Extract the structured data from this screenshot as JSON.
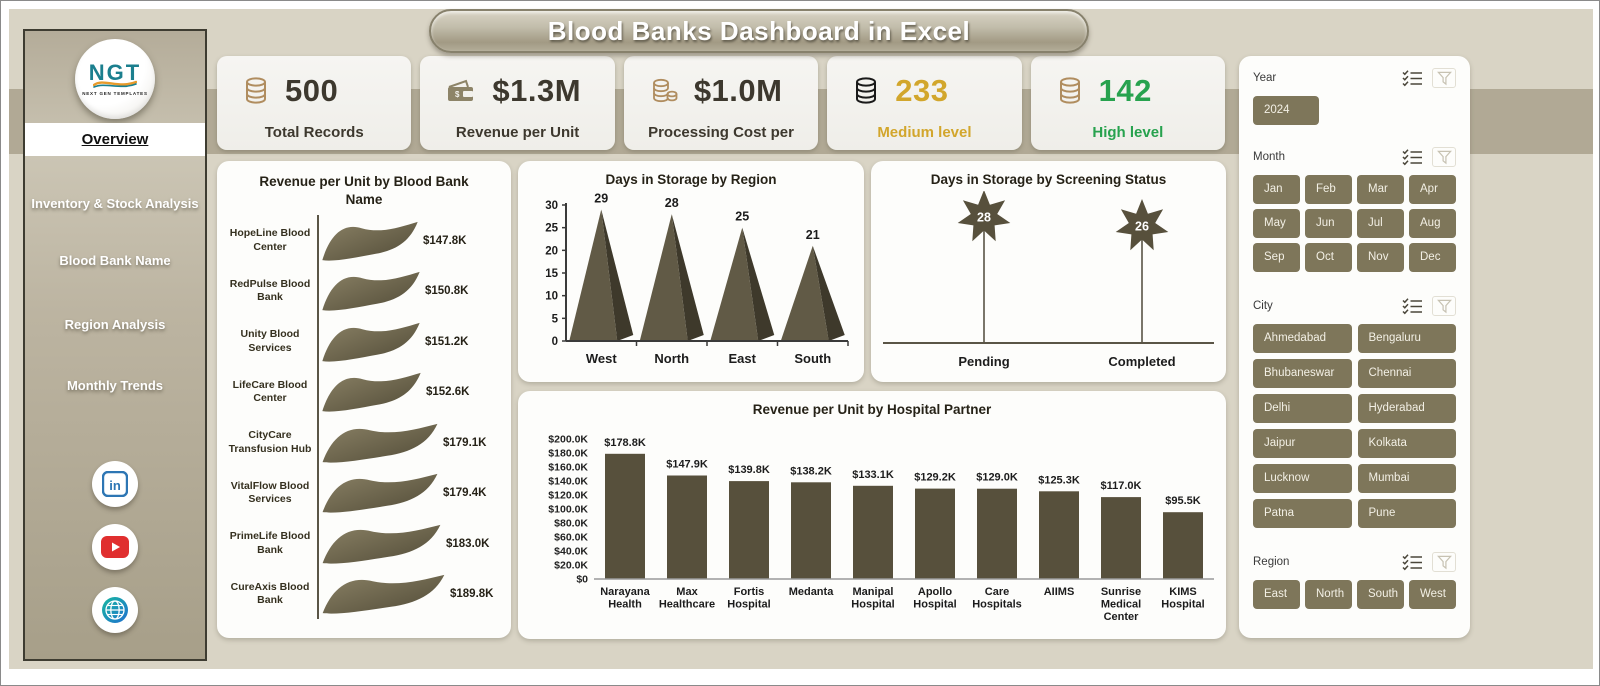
{
  "window": {
    "title": "Blood Banks Dashboard in Excel"
  },
  "sidebar": {
    "logo": {
      "text": "NGT",
      "subtext": "NEXT GEN TEMPLATES"
    },
    "items": [
      {
        "label": "Overview",
        "active": true
      },
      {
        "label": "Inventory & Stock Analysis",
        "active": false
      },
      {
        "label": "Blood Bank Name",
        "active": false
      },
      {
        "label": "Region Analysis",
        "active": false
      },
      {
        "label": "Monthly Trends",
        "active": false
      }
    ],
    "social_icons": [
      "linkedin-icon",
      "youtube-icon",
      "globe-icon"
    ]
  },
  "kpis": [
    {
      "icon": "database-icon",
      "icon_color": "#b08d5f",
      "value": "500",
      "label": "Total Records",
      "color": "#3d382e"
    },
    {
      "icon": "wallet-icon",
      "icon_color": "#8d8468",
      "value": "$1.3M",
      "label": "Revenue per Unit",
      "color": "#3d382e"
    },
    {
      "icon": "coins-icon",
      "icon_color": "#b08d5f",
      "value": "$1.0M",
      "label": "Processing Cost per",
      "color": "#3d382e"
    },
    {
      "icon": "database-icon",
      "icon_color": "#1a1a1a",
      "value": "233",
      "label": "Medium level",
      "color": "#d2a62c"
    },
    {
      "icon": "database-icon",
      "icon_color": "#b08d5f",
      "value": "142",
      "label": "High level",
      "color": "#27a24e"
    }
  ],
  "chart_data": [
    {
      "type": "bar",
      "variant": "wave-horizontal",
      "title": "Revenue per Unit by Blood Bank Name",
      "categories": [
        "HopeLine Blood Center",
        "RedPulse Blood Bank",
        "Unity Blood Services",
        "LifeCare Blood Center",
        "CityCare Transfusion Hub",
        "VitalFlow Blood Services",
        "PrimeLife Blood Bank",
        "CureAxis Blood Bank"
      ],
      "values": [
        147.8,
        150.8,
        151.2,
        152.6,
        179.1,
        179.4,
        183.0,
        189.8
      ],
      "labels": [
        "$147.8K",
        "$150.8K",
        "$151.2K",
        "$152.6K",
        "$179.1K",
        "$179.4K",
        "$183.0K",
        "$189.8K"
      ],
      "xlim": [
        0,
        200
      ],
      "unit": "USD thousands"
    },
    {
      "type": "bar",
      "variant": "pyramid-3d",
      "title": "Days in Storage by Region",
      "categories": [
        "West",
        "North",
        "East",
        "South"
      ],
      "values": [
        29,
        28,
        25,
        21
      ],
      "ylim": [
        0,
        30
      ],
      "yticks": [
        0,
        5,
        10,
        15,
        20,
        25,
        30
      ]
    },
    {
      "type": "lollipop",
      "variant": "star-marker",
      "title": "Days in Storage by Screening Status",
      "categories": [
        "Pending",
        "Completed"
      ],
      "values": [
        28,
        26
      ],
      "ylim": [
        0,
        32
      ]
    },
    {
      "type": "bar",
      "title": "Revenue per Unit by Hospital Partner",
      "categories": [
        "Narayana Health",
        "Max Healthcare",
        "Fortis Hospital",
        "Medanta",
        "Manipal Hospital",
        "Apollo Hospital",
        "Care Hospitals",
        "AIIMS",
        "Sunrise Medical Center",
        "KIMS Hospital"
      ],
      "values": [
        178.8,
        147.9,
        139.8,
        138.2,
        133.1,
        129.2,
        129.0,
        125.3,
        117.0,
        95.5
      ],
      "labels": [
        "$178.8K",
        "$147.9K",
        "$139.8K",
        "$138.2K",
        "$133.1K",
        "$129.2K",
        "$129.0K",
        "$125.3K",
        "$117.0K",
        "$95.5K"
      ],
      "ylim": [
        0,
        200
      ],
      "ytick_labels": [
        "$0",
        "$20.0K",
        "$40.0K",
        "$60.0K",
        "$80.0K",
        "$100.0K",
        "$120.0K",
        "$140.0K",
        "$160.0K",
        "$180.0K",
        "$200.0K"
      ]
    }
  ],
  "slicers": {
    "year": {
      "label": "Year",
      "options": [
        "2024"
      ]
    },
    "month": {
      "label": "Month",
      "options": [
        "Jan",
        "Feb",
        "Mar",
        "Apr",
        "May",
        "Jun",
        "Jul",
        "Aug",
        "Sep",
        "Oct",
        "Nov",
        "Dec"
      ]
    },
    "city": {
      "label": "City",
      "options": [
        "Ahmedabad",
        "Bengaluru",
        "Bhubaneswar",
        "Chennai",
        "Delhi",
        "Hyderabad",
        "Jaipur",
        "Kolkata",
        "Lucknow",
        "Mumbai",
        "Patna",
        "Pune"
      ]
    },
    "region": {
      "label": "Region",
      "options": [
        "East",
        "North",
        "South",
        "West"
      ]
    }
  },
  "colors": {
    "shape": "#57503c",
    "shape_light": "#847b5f",
    "pyramid_front": "#615a46",
    "pyramid_side": "#3e392b",
    "gold": "#d2a62c",
    "green": "#27a24e",
    "slicer_button": "#7e765a",
    "band": "#b1a995",
    "canvas_bg": "#d9d4c5"
  }
}
